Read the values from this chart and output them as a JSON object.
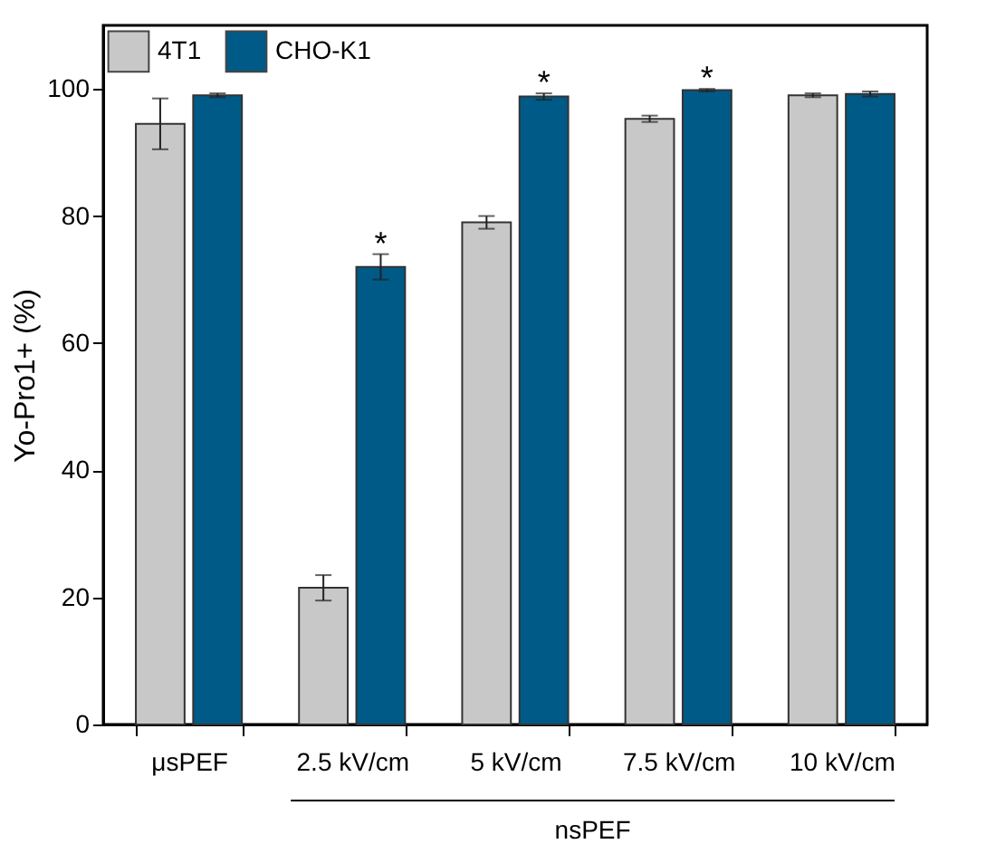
{
  "chart_data": {
    "type": "bar",
    "ylabel": "Yo-Pro1+ (%)",
    "xlabel": "nsPEF",
    "categories": [
      "μsPEF",
      "2.5 kV/cm",
      "5 kV/cm",
      "7.5 kV/cm",
      "10 kV/cm"
    ],
    "series": [
      {
        "name": "4T1",
        "color": "#c8c8c8",
        "values": [
          94.5,
          21.5,
          79,
          95.3,
          99
        ],
        "errors": [
          4,
          2,
          1,
          0.5,
          0.3
        ]
      },
      {
        "name": "CHO-K1",
        "color": "#005a87",
        "values": [
          99,
          72,
          98.8,
          99.8,
          99.2
        ],
        "errors": [
          0.3,
          2,
          0.5,
          0.2,
          0.4
        ]
      }
    ],
    "ylim": [
      0,
      110
    ],
    "yticks": [
      0,
      20,
      40,
      60,
      80,
      100
    ],
    "annotations": [
      {
        "text": "*",
        "x": "2.5 kV/cm",
        "y": 72
      },
      {
        "text": "*",
        "x": "5 kV/cm",
        "y": 98.8
      },
      {
        "text": "*",
        "x": "7.5 kV/cm",
        "y": 99.8
      }
    ],
    "legend": "top left",
    "grid": false
  }
}
